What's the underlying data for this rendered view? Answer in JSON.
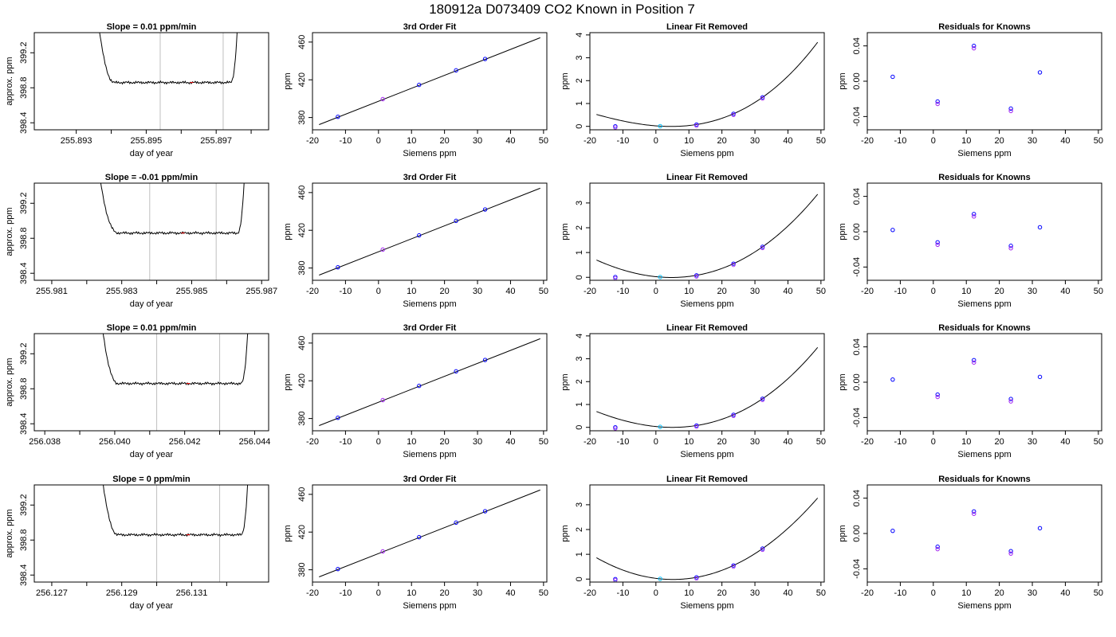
{
  "title": "180912a     D073409   CO2 Known in Position  7",
  "colors": {
    "known": "#0000ff",
    "reference": "#a020f0",
    "zero_point": "#00bfff",
    "highlight": "#ff0000",
    "line": "#000000",
    "window": "#bfbfbf"
  },
  "chart_data": [
    {
      "type": "line",
      "row": 0,
      "col": 0,
      "title": "Slope =  0.01  ppm/min",
      "xlabel": "day of year",
      "ylabel": "approx. ppm",
      "xlim": [
        255.8918,
        255.8985
      ],
      "ylim": [
        398.32,
        399.43
      ],
      "xticks": [
        255.893,
        255.894,
        255.895,
        255.896,
        255.897,
        255.898
      ],
      "xticklabels": [
        "255.893",
        "",
        "255.895",
        "",
        "255.897",
        ""
      ],
      "yticks": [
        398.4,
        398.8,
        399.2
      ],
      "yticklabels": [
        "398.4",
        "398.8",
        "399.2"
      ],
      "window": [
        255.8954,
        255.8972
      ],
      "trace_x": [
        255.8935,
        255.8977
      ],
      "trace_level": 398.86,
      "trace_variation": 0.015,
      "edge_rise": [
        255.8935,
        255.8941
      ],
      "edge_fall": [
        255.8974,
        255.8977
      ]
    },
    {
      "type": "line",
      "row": 0,
      "col": 1,
      "title": "3rd Order Fit",
      "xlabel": "Siemens ppm",
      "ylabel": "ppm",
      "xlim": [
        -20,
        51
      ],
      "ylim": [
        367,
        470
      ],
      "xticks": [
        -20,
        -10,
        0,
        10,
        20,
        30,
        40,
        50
      ],
      "xticklabels": [
        "-20",
        "-10",
        "0",
        "10",
        "20",
        "30",
        "40",
        "50"
      ],
      "yticks": [
        380,
        420,
        460
      ],
      "yticklabels": [
        "380",
        "420",
        "460"
      ],
      "fit_x": [
        -18,
        49
      ],
      "fit_y": [
        372.5,
        464.6
      ],
      "points": [
        {
          "x": -12.3,
          "y": 380.8
        },
        {
          "x": 1.3,
          "y": 399.5
        },
        {
          "x": 12.3,
          "y": 414.6
        },
        {
          "x": 23.5,
          "y": 430.0
        },
        {
          "x": 32.3,
          "y": 442.1
        }
      ]
    },
    {
      "type": "line",
      "row": 0,
      "col": 2,
      "title": "Linear Fit Removed",
      "xlabel": "Siemens ppm",
      "ylabel": "ppm",
      "xlim": [
        -20,
        51
      ],
      "ylim": [
        -0.15,
        4.1
      ],
      "xticks": [
        -20,
        -10,
        0,
        10,
        20,
        30,
        40,
        50
      ],
      "xticklabels": [
        "-20",
        "-10",
        "0",
        "10",
        "20",
        "30",
        "40",
        "50"
      ],
      "yticks": [
        0,
        1,
        2,
        3,
        4
      ],
      "yticklabels": [
        "0",
        "1",
        "2",
        "3",
        "4"
      ],
      "points": [
        {
          "x": -12.3,
          "y": 0.0
        },
        {
          "x": 1.3,
          "y": 0.01
        },
        {
          "x": 12.3,
          "y": 0.08
        },
        {
          "x": 23.5,
          "y": 0.55
        },
        {
          "x": 32.3,
          "y": 1.27
        }
      ]
    },
    {
      "type": "scatter",
      "row": 0,
      "col": 3,
      "title": "Residuals for Knowns",
      "xlabel": "Siemens ppm",
      "ylabel": "ppm",
      "xlim": [
        -20,
        51
      ],
      "ylim": [
        -0.055,
        0.055
      ],
      "xticks": [
        -20,
        -10,
        0,
        10,
        20,
        30,
        40,
        50
      ],
      "xticklabels": [
        "-20",
        "-10",
        "0",
        "10",
        "20",
        "30",
        "40",
        "50"
      ],
      "yticks": [
        -0.04,
        0,
        0.04
      ],
      "yticklabels": [
        "-0.04",
        "0.00",
        "0.04"
      ],
      "points": [
        {
          "x": -12.3,
          "y": 0.005
        },
        {
          "x": 1.3,
          "y": -0.023
        },
        {
          "x": 12.3,
          "y": 0.04
        },
        {
          "x": 23.5,
          "y": -0.031
        },
        {
          "x": 32.3,
          "y": 0.01
        }
      ]
    },
    {
      "type": "line",
      "row": 1,
      "col": 0,
      "title": "Slope =  -0.01  ppm/min",
      "xlabel": "day of year",
      "ylabel": "approx. ppm",
      "xlim": [
        255.9805,
        255.9872
      ],
      "ylim": [
        398.32,
        399.43
      ],
      "xticks": [
        255.981,
        255.982,
        255.983,
        255.984,
        255.985,
        255.986,
        255.987
      ],
      "xticklabels": [
        "255.981",
        "",
        "255.983",
        "",
        "255.985",
        "",
        "255.987"
      ],
      "yticks": [
        398.4,
        398.8,
        399.2
      ],
      "yticklabels": [
        "398.4",
        "398.8",
        "399.2"
      ],
      "window": [
        255.9838,
        255.9857
      ],
      "trace_x": [
        255.9822,
        255.9866
      ],
      "trace_level": 398.86,
      "trace_variation": 0.015,
      "edge_rise": [
        255.9822,
        255.9829
      ],
      "edge_fall": [
        255.9863,
        255.9866
      ]
    },
    {
      "type": "line",
      "row": 1,
      "col": 1,
      "title": "3rd Order Fit",
      "xlabel": "Siemens ppm",
      "ylabel": "ppm",
      "xlim": [
        -20,
        51
      ],
      "ylim": [
        367,
        470
      ],
      "xticks": [
        -20,
        -10,
        0,
        10,
        20,
        30,
        40,
        50
      ],
      "xticklabels": [
        "-20",
        "-10",
        "0",
        "10",
        "20",
        "30",
        "40",
        "50"
      ],
      "yticks": [
        380,
        420,
        460
      ],
      "yticklabels": [
        "380",
        "420",
        "460"
      ],
      "fit_x": [
        -18,
        49
      ],
      "fit_y": [
        372.5,
        464.6
      ],
      "points": [
        {
          "x": -12.3,
          "y": 380.8
        },
        {
          "x": 1.3,
          "y": 399.5
        },
        {
          "x": 12.3,
          "y": 414.6
        },
        {
          "x": 23.5,
          "y": 430.0
        },
        {
          "x": 32.3,
          "y": 442.1
        }
      ]
    },
    {
      "type": "line",
      "row": 1,
      "col": 2,
      "title": "Linear Fit Removed",
      "xlabel": "Siemens ppm",
      "ylabel": "ppm",
      "xlim": [
        -20,
        51
      ],
      "ylim": [
        -0.12,
        3.8
      ],
      "xticks": [
        -20,
        -10,
        0,
        10,
        20,
        30,
        40,
        50
      ],
      "xticklabels": [
        "-20",
        "-10",
        "0",
        "10",
        "20",
        "30",
        "40",
        "50"
      ],
      "yticks": [
        0,
        1,
        2,
        3
      ],
      "yticklabels": [
        "0",
        "1",
        "2",
        "3"
      ],
      "points": [
        {
          "x": -12.3,
          "y": 0.01
        },
        {
          "x": 1.3,
          "y": 0.01
        },
        {
          "x": 12.3,
          "y": 0.08
        },
        {
          "x": 23.5,
          "y": 0.55
        },
        {
          "x": 32.3,
          "y": 1.23
        }
      ]
    },
    {
      "type": "scatter",
      "row": 1,
      "col": 3,
      "title": "Residuals for Knowns",
      "xlabel": "Siemens ppm",
      "ylabel": "ppm",
      "xlim": [
        -20,
        51
      ],
      "ylim": [
        -0.055,
        0.055
      ],
      "xticks": [
        -20,
        -10,
        0,
        10,
        20,
        30,
        40,
        50
      ],
      "xticklabels": [
        "-20",
        "-10",
        "0",
        "10",
        "20",
        "30",
        "40",
        "50"
      ],
      "yticks": [
        -0.04,
        0,
        0.04
      ],
      "yticklabels": [
        "-0.04",
        "0.00",
        "0.04"
      ],
      "points": [
        {
          "x": -12.3,
          "y": 0.002
        },
        {
          "x": 1.3,
          "y": -0.012
        },
        {
          "x": 12.3,
          "y": 0.02
        },
        {
          "x": 23.5,
          "y": -0.016
        },
        {
          "x": 32.3,
          "y": 0.005
        }
      ]
    },
    {
      "type": "line",
      "row": 2,
      "col": 0,
      "title": "Slope =  0.01  ppm/min",
      "xlabel": "day of year",
      "ylabel": "approx. ppm",
      "xlim": [
        256.0377,
        256.0444
      ],
      "ylim": [
        398.32,
        399.43
      ],
      "xticks": [
        256.038,
        256.039,
        256.04,
        256.041,
        256.042,
        256.043,
        256.044
      ],
      "xticklabels": [
        "256.038",
        "",
        "256.040",
        "",
        "256.042",
        "",
        "256.044"
      ],
      "yticks": [
        398.4,
        398.8,
        399.2
      ],
      "yticklabels": [
        "398.4",
        "398.8",
        "399.2"
      ],
      "window": [
        256.0412,
        256.043
      ],
      "trace_x": [
        256.0395,
        256.0439
      ],
      "trace_level": 398.86,
      "trace_variation": 0.015,
      "edge_rise": [
        256.0395,
        256.0401
      ],
      "edge_fall": [
        256.0436,
        256.0439
      ]
    },
    {
      "type": "line",
      "row": 2,
      "col": 1,
      "title": "3rd Order Fit",
      "xlabel": "Siemens ppm",
      "ylabel": "ppm",
      "xlim": [
        -20,
        51
      ],
      "ylim": [
        367,
        470
      ],
      "xticks": [
        -20,
        -10,
        0,
        10,
        20,
        30,
        40,
        50
      ],
      "xticklabels": [
        "-20",
        "-10",
        "0",
        "10",
        "20",
        "30",
        "40",
        "50"
      ],
      "yticks": [
        380,
        420,
        460
      ],
      "yticklabels": [
        "380",
        "420",
        "460"
      ],
      "fit_x": [
        -18,
        49
      ],
      "fit_y": [
        372.5,
        464.6
      ],
      "points": [
        {
          "x": -12.3,
          "y": 380.8
        },
        {
          "x": 1.3,
          "y": 399.5
        },
        {
          "x": 12.3,
          "y": 414.6
        },
        {
          "x": 23.5,
          "y": 430.0
        },
        {
          "x": 32.3,
          "y": 442.1
        }
      ]
    },
    {
      "type": "line",
      "row": 2,
      "col": 2,
      "title": "Linear Fit Removed",
      "xlabel": "Siemens ppm",
      "ylabel": "ppm",
      "xlim": [
        -20,
        51
      ],
      "ylim": [
        -0.15,
        4.1
      ],
      "xticks": [
        -20,
        -10,
        0,
        10,
        20,
        30,
        40,
        50
      ],
      "xticklabels": [
        "-20",
        "-10",
        "0",
        "10",
        "20",
        "30",
        "40",
        "50"
      ],
      "yticks": [
        0,
        1,
        2,
        3,
        4
      ],
      "yticklabels": [
        "0",
        "1",
        "2",
        "3",
        "4"
      ],
      "points": [
        {
          "x": -12.3,
          "y": 0.0
        },
        {
          "x": 1.3,
          "y": 0.02
        },
        {
          "x": 12.3,
          "y": 0.08
        },
        {
          "x": 23.5,
          "y": 0.55
        },
        {
          "x": 32.3,
          "y": 1.25
        }
      ]
    },
    {
      "type": "scatter",
      "row": 2,
      "col": 3,
      "title": "Residuals for Knowns",
      "xlabel": "Siemens ppm",
      "ylabel": "ppm",
      "xlim": [
        -20,
        51
      ],
      "ylim": [
        -0.055,
        0.055
      ],
      "xticks": [
        -20,
        -10,
        0,
        10,
        20,
        30,
        40,
        50
      ],
      "xticklabels": [
        "-20",
        "-10",
        "0",
        "10",
        "20",
        "30",
        "40",
        "50"
      ],
      "yticks": [
        -0.04,
        0,
        0.04
      ],
      "yticklabels": [
        "-0.04",
        "0.00",
        "0.04"
      ],
      "points": [
        {
          "x": -12.3,
          "y": 0.003
        },
        {
          "x": 1.3,
          "y": -0.014
        },
        {
          "x": 12.3,
          "y": 0.025
        },
        {
          "x": 23.5,
          "y": -0.019
        },
        {
          "x": 32.3,
          "y": 0.006
        }
      ]
    },
    {
      "type": "line",
      "row": 3,
      "col": 0,
      "title": "Slope =  0  ppm/min",
      "xlabel": "day of year",
      "ylabel": "approx. ppm",
      "xlim": [
        256.1265,
        256.1332
      ],
      "ylim": [
        398.32,
        399.43
      ],
      "xticks": [
        256.127,
        256.128,
        256.129,
        256.13,
        256.131,
        256.132
      ],
      "xticklabels": [
        "256.127",
        "",
        "256.129",
        "",
        "256.131",
        ""
      ],
      "yticks": [
        398.4,
        398.8,
        399.2
      ],
      "yticklabels": [
        "398.4",
        "398.8",
        "399.2"
      ],
      "window": [
        256.13,
        256.1318
      ],
      "trace_x": [
        256.1283,
        256.1327
      ],
      "trace_level": 398.86,
      "trace_variation": 0.015,
      "edge_rise": [
        256.1283,
        256.1289
      ],
      "edge_fall": [
        256.1324,
        256.1327
      ]
    },
    {
      "type": "line",
      "row": 3,
      "col": 1,
      "title": "3rd Order Fit",
      "xlabel": "Siemens ppm",
      "ylabel": "ppm",
      "xlim": [
        -20,
        51
      ],
      "ylim": [
        367,
        470
      ],
      "xticks": [
        -20,
        -10,
        0,
        10,
        20,
        30,
        40,
        50
      ],
      "xticklabels": [
        "-20",
        "-10",
        "0",
        "10",
        "20",
        "30",
        "40",
        "50"
      ],
      "yticks": [
        380,
        420,
        460
      ],
      "yticklabels": [
        "380",
        "420",
        "460"
      ],
      "fit_x": [
        -18,
        49
      ],
      "fit_y": [
        372.5,
        464.6
      ],
      "points": [
        {
          "x": -12.3,
          "y": 380.8
        },
        {
          "x": 1.3,
          "y": 399.5
        },
        {
          "x": 12.3,
          "y": 414.6
        },
        {
          "x": 23.5,
          "y": 430.0
        },
        {
          "x": 32.3,
          "y": 442.1
        }
      ]
    },
    {
      "type": "line",
      "row": 3,
      "col": 2,
      "title": "Linear Fit Removed",
      "xlabel": "Siemens ppm",
      "ylabel": "ppm",
      "xlim": [
        -20,
        51
      ],
      "ylim": [
        -0.12,
        3.8
      ],
      "xticks": [
        -20,
        -10,
        0,
        10,
        20,
        30,
        40,
        50
      ],
      "xticklabels": [
        "-20",
        "-10",
        "0",
        "10",
        "20",
        "30",
        "40",
        "50"
      ],
      "yticks": [
        0,
        1,
        2,
        3
      ],
      "yticklabels": [
        "0",
        "1",
        "2",
        "3"
      ],
      "points": [
        {
          "x": -12.3,
          "y": 0.0
        },
        {
          "x": 1.3,
          "y": 0.01
        },
        {
          "x": 12.3,
          "y": 0.07
        },
        {
          "x": 23.5,
          "y": 0.55
        },
        {
          "x": 32.3,
          "y": 1.23
        }
      ]
    },
    {
      "type": "scatter",
      "row": 3,
      "col": 3,
      "title": "Residuals for Knowns",
      "xlabel": "Siemens ppm",
      "ylabel": "ppm",
      "xlim": [
        -20,
        51
      ],
      "ylim": [
        -0.055,
        0.055
      ],
      "xticks": [
        -20,
        -10,
        0,
        10,
        20,
        30,
        40,
        50
      ],
      "xticklabels": [
        "-20",
        "-10",
        "0",
        "10",
        "20",
        "30",
        "40",
        "50"
      ],
      "yticks": [
        -0.04,
        0,
        0.04
      ],
      "yticklabels": [
        "-0.04",
        "0.00",
        "0.04"
      ],
      "points": [
        {
          "x": -12.3,
          "y": 0.003
        },
        {
          "x": 1.3,
          "y": -0.015
        },
        {
          "x": 12.3,
          "y": 0.025
        },
        {
          "x": 23.5,
          "y": -0.02
        },
        {
          "x": 32.3,
          "y": 0.006
        }
      ]
    }
  ]
}
